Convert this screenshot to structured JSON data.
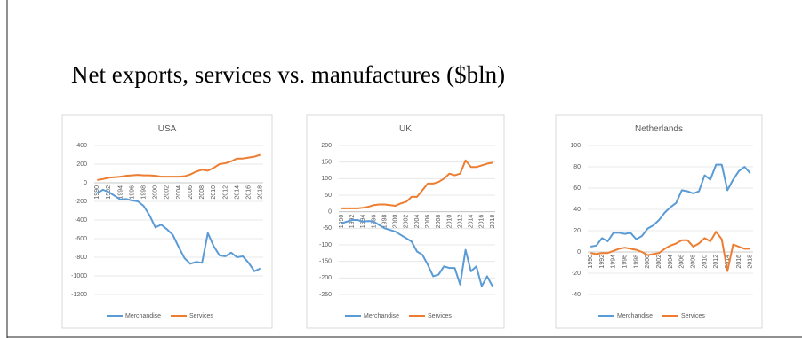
{
  "title": "Net exports, services vs. manufactures ($bln)",
  "chart_data": [
    {
      "type": "line",
      "title": "USA",
      "categories": [
        "1990",
        null,
        "1992",
        null,
        "1994",
        null,
        "1996",
        null,
        "1998",
        null,
        "2000",
        null,
        "2002",
        null,
        "2004",
        null,
        "2006",
        null,
        "2008",
        null,
        "2010",
        null,
        "2012",
        null,
        "2014",
        null,
        "2016",
        null,
        "2018"
      ],
      "series": [
        {
          "name": "Merchandise",
          "color": "#5b9bd5",
          "values": [
            -110,
            -75,
            -100,
            -140,
            -180,
            -175,
            -190,
            -200,
            -250,
            -350,
            -480,
            -450,
            -500,
            -560,
            -690,
            -810,
            -870,
            -850,
            -860,
            -540,
            -680,
            -780,
            -790,
            -750,
            -800,
            -790,
            -860,
            -950,
            -920
          ]
        },
        {
          "name": "Services",
          "color": "#ed7d31",
          "values": [
            30,
            40,
            55,
            60,
            65,
            75,
            80,
            85,
            80,
            80,
            75,
            65,
            65,
            65,
            65,
            70,
            90,
            120,
            140,
            130,
            160,
            200,
            210,
            230,
            260,
            260,
            270,
            280,
            300
          ]
        }
      ],
      "ylim": [
        -1200,
        400
      ],
      "yticks": [
        -1200,
        -1000,
        -800,
        -600,
        -400,
        -200,
        0,
        200,
        400
      ],
      "grid": true,
      "legend": "bottom"
    },
    {
      "type": "line",
      "title": "UK",
      "categories": [
        "1990",
        null,
        "1992",
        null,
        "1994",
        null,
        "1996",
        null,
        "1998",
        null,
        "2000",
        null,
        "2002",
        null,
        "2004",
        null,
        "2006",
        null,
        "2008",
        null,
        "2010",
        null,
        "2012",
        null,
        "2014",
        null,
        "2016",
        null,
        "2018"
      ],
      "series": [
        {
          "name": "Merchandise",
          "color": "#5b9bd5",
          "values": [
            -35,
            -30,
            -25,
            -25,
            -30,
            -28,
            -30,
            -40,
            -50,
            -55,
            -60,
            -70,
            -80,
            -90,
            -120,
            -130,
            -160,
            -195,
            -190,
            -165,
            -170,
            -170,
            -220,
            -115,
            -180,
            -165,
            -225,
            -195,
            -225
          ]
        },
        {
          "name": "Services",
          "color": "#ed7d31",
          "values": [
            10,
            10,
            10,
            10,
            12,
            15,
            20,
            22,
            22,
            20,
            18,
            25,
            30,
            45,
            45,
            65,
            85,
            85,
            90,
            100,
            115,
            110,
            115,
            155,
            135,
            135,
            140,
            145,
            148
          ]
        }
      ],
      "ylim": [
        -250,
        200
      ],
      "yticks": [
        -250,
        -200,
        -150,
        -100,
        -50,
        0,
        50,
        100,
        150,
        200
      ],
      "grid": true,
      "legend": "bottom"
    },
    {
      "type": "line",
      "title": "Netherlands",
      "categories": [
        "1990",
        null,
        "1992",
        null,
        "1994",
        null,
        "1996",
        null,
        "1998",
        null,
        "2000",
        null,
        "2002",
        null,
        "2004",
        null,
        "2006",
        null,
        "2008",
        null,
        "2010",
        null,
        "2012",
        null,
        "2014",
        null,
        "2016",
        null,
        "2018"
      ],
      "series": [
        {
          "name": "Merchandise",
          "color": "#5b9bd5",
          "values": [
            5,
            6,
            13,
            10,
            18,
            18,
            17,
            18,
            12,
            15,
            22,
            25,
            30,
            37,
            42,
            46,
            58,
            57,
            55,
            57,
            72,
            68,
            82,
            82,
            58,
            68,
            76,
            80,
            74
          ]
        },
        {
          "name": "Services",
          "color": "#ed7d31",
          "values": [
            -1,
            -2,
            -1,
            -1,
            1,
            3,
            4,
            3,
            2,
            0,
            -3,
            -2,
            -1,
            3,
            6,
            8,
            11,
            11,
            5,
            8,
            13,
            10,
            19,
            12,
            -18,
            7,
            5,
            3,
            3
          ]
        }
      ],
      "ylim": [
        -40,
        100
      ],
      "yticks": [
        -40,
        -20,
        0,
        20,
        40,
        60,
        80,
        100
      ],
      "grid": true,
      "legend": "bottom"
    }
  ]
}
